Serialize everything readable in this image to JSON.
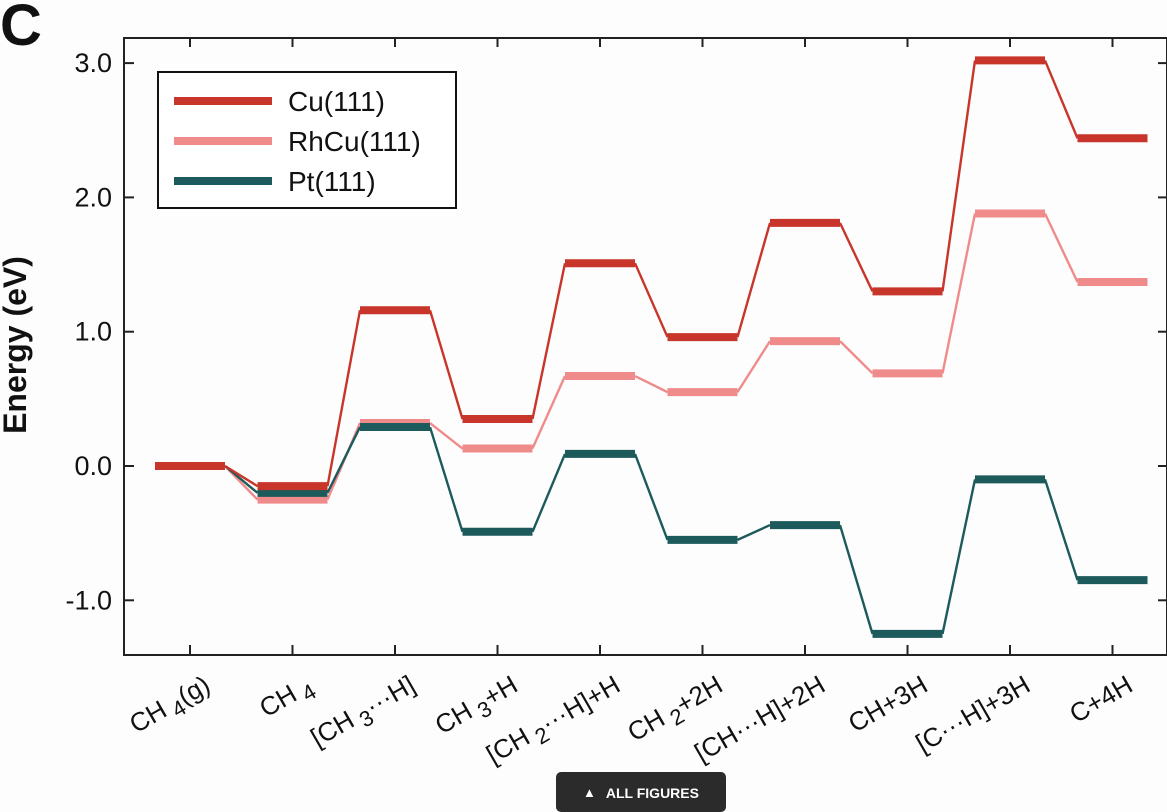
{
  "panel_label": "C",
  "all_figures_button": {
    "label": "ALL FIGURES",
    "icon": "chevron-up-icon"
  },
  "chart_data": {
    "type": "line",
    "subtype": "energy-level-diagram",
    "title": "",
    "xlabel": "",
    "ylabel": "Energy (eV)",
    "ylim": [
      -1.4,
      3.2
    ],
    "yticks": [
      {
        "value": 3.0,
        "label": "3.0"
      },
      {
        "value": 2.0,
        "label": "2.0"
      },
      {
        "value": 1.0,
        "label": "1.0"
      },
      {
        "value": 0.0,
        "label": "0.0"
      },
      {
        "value": -1.0,
        "label": "-1.0"
      }
    ],
    "categories": [
      {
        "base": "CH",
        "sub": "4",
        "rest": "(g)"
      },
      {
        "base": "CH",
        "sub": "4",
        "rest": ""
      },
      {
        "base": "[CH",
        "sub": "3",
        "rest": "···H]"
      },
      {
        "base": "CH",
        "sub": "3",
        "rest": "+H"
      },
      {
        "base": "[CH",
        "sub": "2",
        "rest": "···H]+H"
      },
      {
        "base": "CH",
        "sub": "2",
        "rest": "+2H"
      },
      {
        "base": "[CH···H]+2H",
        "sub": "",
        "rest": ""
      },
      {
        "base": "CH+3H",
        "sub": "",
        "rest": ""
      },
      {
        "base": "[C···H]+3H",
        "sub": "",
        "rest": ""
      },
      {
        "base": "C+4H",
        "sub": "",
        "rest": ""
      }
    ],
    "series": [
      {
        "name": "Cu(111)",
        "color": "#c8352a",
        "values": [
          0.0,
          -0.15,
          1.16,
          0.35,
          1.51,
          0.96,
          1.81,
          1.3,
          3.02,
          2.44
        ]
      },
      {
        "name": "RhCu(111)",
        "color": "#f08b8b",
        "values": [
          0.0,
          -0.25,
          0.32,
          0.13,
          0.67,
          0.55,
          0.93,
          0.69,
          1.88,
          1.37
        ]
      },
      {
        "name": "Pt(111)",
        "color": "#1d5a5b",
        "values": [
          0.0,
          -0.2,
          0.29,
          -0.49,
          0.09,
          -0.55,
          -0.44,
          -1.25,
          -0.1,
          -0.85
        ]
      }
    ],
    "legend": {
      "position": "top-left",
      "entries": [
        "Cu(111)",
        "RhCu(111)",
        "Pt(111)"
      ]
    },
    "grid": false
  }
}
